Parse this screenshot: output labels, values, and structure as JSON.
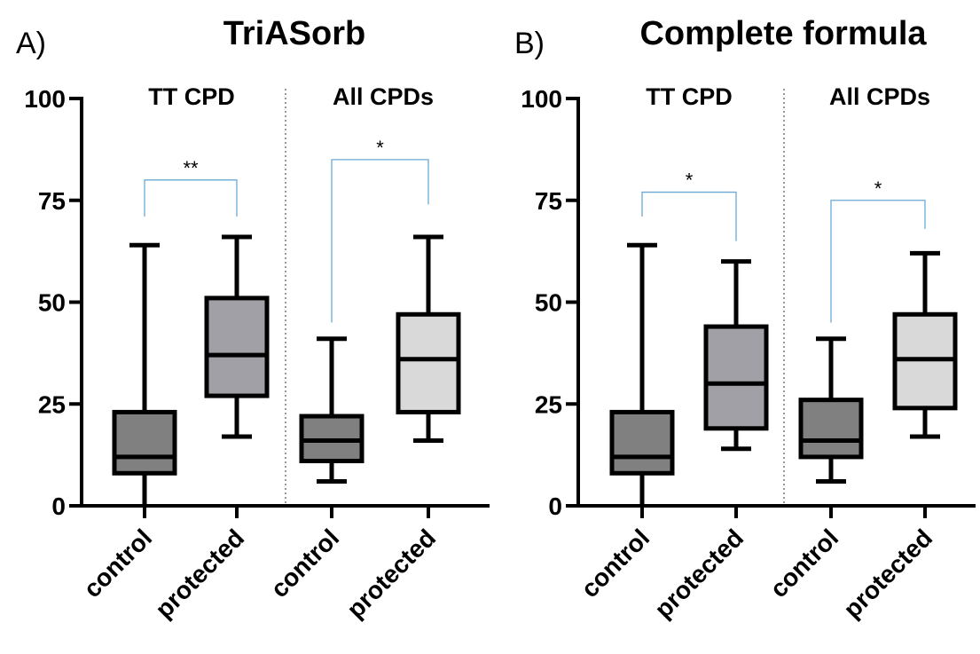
{
  "chart_data": [
    {
      "type": "box",
      "panel_label": "A)",
      "title": "TriASorb",
      "ylim": [
        0,
        100
      ],
      "yticks": [
        0,
        25,
        50,
        75,
        100
      ],
      "groups": [
        "TT CPD",
        "All CPDs"
      ],
      "categories": [
        "control",
        "protected",
        "control",
        "protected"
      ],
      "boxes": [
        {
          "group": 0,
          "category": "control",
          "min": 0,
          "q1": 8,
          "median": 12,
          "q3": 23,
          "max": 64,
          "color": "#808080"
        },
        {
          "group": 0,
          "category": "protected",
          "min": 17,
          "q1": 27,
          "median": 37,
          "q3": 51,
          "max": 66,
          "color": "#a0a0a6"
        },
        {
          "group": 1,
          "category": "control",
          "min": 6,
          "q1": 11,
          "median": 16,
          "q3": 22,
          "max": 41,
          "color": "#808080"
        },
        {
          "group": 1,
          "category": "protected",
          "min": 16,
          "q1": 23,
          "median": 36,
          "q3": 47,
          "max": 66,
          "color": "#d9d9d9"
        }
      ],
      "significance": [
        {
          "from": 0,
          "to": 1,
          "y": 80,
          "left_drop": 71,
          "right_drop": 71,
          "label": "**"
        },
        {
          "from": 2,
          "to": 3,
          "y": 85,
          "left_drop": 45,
          "right_drop": 74,
          "label": "*"
        }
      ]
    },
    {
      "type": "box",
      "panel_label": "B)",
      "title": "Complete formula",
      "ylim": [
        0,
        100
      ],
      "yticks": [
        0,
        25,
        50,
        75,
        100
      ],
      "groups": [
        "TT CPD",
        "All CPDs"
      ],
      "categories": [
        "control",
        "protected",
        "control",
        "protected"
      ],
      "boxes": [
        {
          "group": 0,
          "category": "control",
          "min": 0,
          "q1": 8,
          "median": 12,
          "q3": 23,
          "max": 64,
          "color": "#808080"
        },
        {
          "group": 0,
          "category": "protected",
          "min": 14,
          "q1": 19,
          "median": 30,
          "q3": 44,
          "max": 60,
          "color": "#a0a0a6"
        },
        {
          "group": 1,
          "category": "control",
          "min": 6,
          "q1": 12,
          "median": 16,
          "q3": 26,
          "max": 41,
          "color": "#808080"
        },
        {
          "group": 1,
          "category": "protected",
          "min": 17,
          "q1": 24,
          "median": 36,
          "q3": 47,
          "max": 62,
          "color": "#d9d9d9"
        }
      ],
      "significance": [
        {
          "from": 0,
          "to": 1,
          "y": 77,
          "left_drop": 71,
          "right_drop": 65,
          "label": "*"
        },
        {
          "from": 2,
          "to": 3,
          "y": 75,
          "left_drop": 45,
          "right_drop": 68,
          "label": "*"
        }
      ]
    }
  ],
  "colors": {
    "axis": "#000000",
    "bracket": "#6aa9d8",
    "divider": "#555555"
  }
}
